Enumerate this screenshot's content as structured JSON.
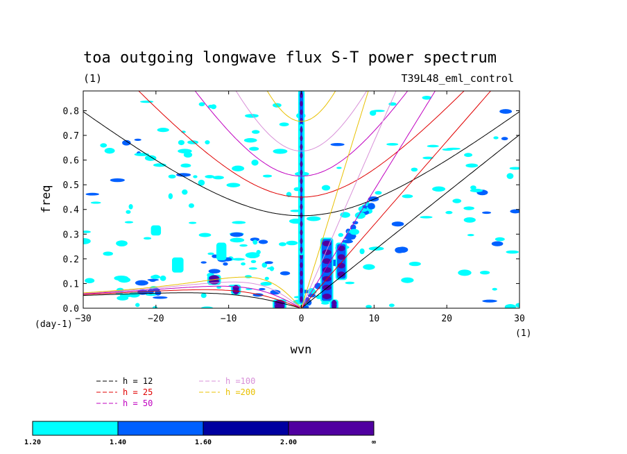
{
  "chart_data": {
    "type": "heatmap",
    "title": "toa outgoing longwave flux S-T power spectrum",
    "subtitle_left": "(1)",
    "subtitle_right": "T39L48_eml_control",
    "xlabel": "wvn",
    "ylabel": "freq",
    "x_unit_label": "(1)",
    "y_unit_label": "(day-1)",
    "xlim": [
      -30,
      30
    ],
    "ylim": [
      0,
      0.88
    ],
    "x_ticks": [
      -30,
      -20,
      -10,
      0,
      10,
      20,
      30
    ],
    "x_tick_labels": [
      "-30",
      "-20",
      "-10",
      "0",
      "10",
      "20",
      "30"
    ],
    "y_ticks": [
      0,
      0.1,
      0.2,
      0.3,
      0.4,
      0.5,
      0.6,
      0.7,
      0.8
    ],
    "y_tick_labels": [
      "0.0",
      "0.1",
      "0.2",
      "0.3",
      "0.4",
      "0.5",
      "0.6",
      "0.7",
      "0.8"
    ],
    "dispersion_curves": [
      {
        "name": "h = 12",
        "color": "#000000",
        "h": 12
      },
      {
        "name": "h = 25",
        "color": "#e00000",
        "h": 25
      },
      {
        "name": "h = 50",
        "color": "#c000c0",
        "h": 50
      },
      {
        "name": "h =100",
        "color": "#d890d8",
        "h": 100
      },
      {
        "name": "h =200",
        "color": "#e8c000",
        "h": 200
      }
    ],
    "contour_levels": [
      {
        "label": "1.20",
        "color": "#00ffff"
      },
      {
        "label": "1.40",
        "color": "#0060ff"
      },
      {
        "label": "1.60",
        "color": "#0000a0"
      },
      {
        "label": "2.00",
        "color": "#5000a0"
      },
      {
        "label": "∞",
        "color": "#5000a0"
      }
    ],
    "power_regions": [
      {
        "x": 0,
        "y0": 0.02,
        "y1": 0.88,
        "w": 0.5,
        "level": 3
      },
      {
        "x": 0,
        "y0": 0.22,
        "y1": 0.74,
        "w": 0.3,
        "level": 4
      },
      {
        "x": 3.5,
        "y0": 0.03,
        "y1": 0.28,
        "w": 1.4,
        "level": 3
      },
      {
        "x": 5.5,
        "y0": 0.12,
        "y1": 0.26,
        "w": 1.2,
        "level": 4
      },
      {
        "x": 4.5,
        "y0": 0.0,
        "y1": 0.03,
        "w": 0.8,
        "level": 3
      },
      {
        "x": -3,
        "y0": 0.0,
        "y1": 0.03,
        "w": 1.5,
        "level": 3
      },
      {
        "x": -12,
        "y0": 0.1,
        "y1": 0.13,
        "w": 1.5,
        "level": 3
      },
      {
        "x": -17,
        "y0": 0.15,
        "y1": 0.2,
        "w": 1.2,
        "level": 2
      },
      {
        "x": -11,
        "y0": 0.2,
        "y1": 0.26,
        "w": 1.0,
        "level": 2
      },
      {
        "x": -20,
        "y0": 0.3,
        "y1": 0.33,
        "w": 1.0,
        "level": 2
      },
      {
        "x": -9,
        "y0": 0.06,
        "y1": 0.09,
        "w": 1.0,
        "level": 3
      }
    ]
  }
}
